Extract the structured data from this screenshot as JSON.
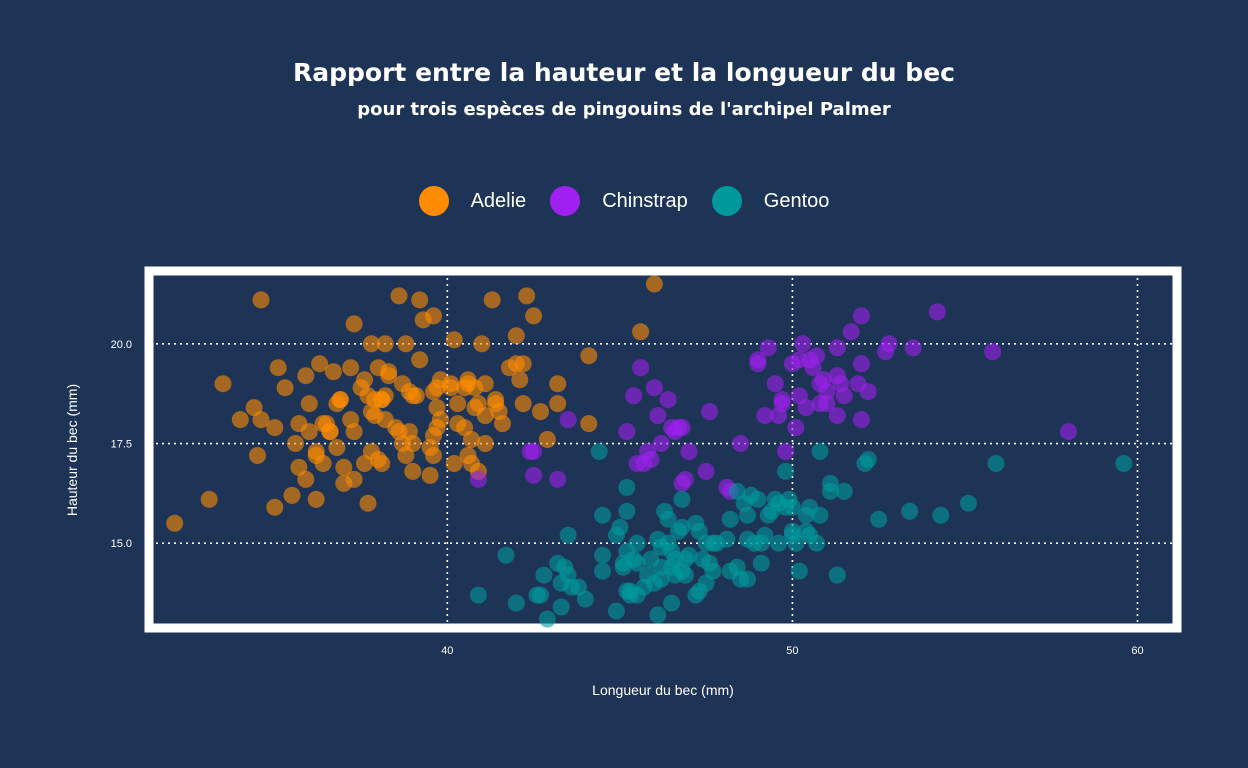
{
  "chart_data": {
    "type": "scatter",
    "title": "Rapport entre la hauteur et la longueur du bec",
    "subtitle": "pour trois espèces de pingouins de l'archipel Palmer",
    "xlabel": "Longueur du bec (mm)",
    "ylabel": "Hauteur du bec (mm)",
    "xlim": [
      31.5,
      61
    ],
    "ylim": [
      13,
      21.7
    ],
    "x_ticks": [
      40,
      50,
      60
    ],
    "y_ticks": [
      15.0,
      17.5,
      20.0
    ],
    "x_tick_labels": [
      "40",
      "50",
      "60"
    ],
    "y_tick_labels": [
      "15.0",
      "17.5",
      "20.0"
    ],
    "grid": true,
    "legend_position": "top",
    "series": [
      {
        "name": "Adelie",
        "color": "#ff8c00",
        "points": [
          [
            32.1,
            15.5
          ],
          [
            33.1,
            16.1
          ],
          [
            33.5,
            19.0
          ],
          [
            34.0,
            18.1
          ],
          [
            34.4,
            18.4
          ],
          [
            34.6,
            18.1
          ],
          [
            34.6,
            21.1
          ],
          [
            35.0,
            17.9
          ],
          [
            35.1,
            19.4
          ],
          [
            35.3,
            18.9
          ],
          [
            35.5,
            16.2
          ],
          [
            35.6,
            17.5
          ],
          [
            35.7,
            16.9
          ],
          [
            35.9,
            19.2
          ],
          [
            36.0,
            17.8
          ],
          [
            36.0,
            18.5
          ],
          [
            36.2,
            17.2
          ],
          [
            36.2,
            16.1
          ],
          [
            36.4,
            17.0
          ],
          [
            36.5,
            18.0
          ],
          [
            36.6,
            17.8
          ],
          [
            36.7,
            19.3
          ],
          [
            36.8,
            18.5
          ],
          [
            36.9,
            18.6
          ],
          [
            37.0,
            16.9
          ],
          [
            37.2,
            18.1
          ],
          [
            37.3,
            17.8
          ],
          [
            37.3,
            20.5
          ],
          [
            37.5,
            18.9
          ],
          [
            37.6,
            17.0
          ],
          [
            37.7,
            18.7
          ],
          [
            37.8,
            18.3
          ],
          [
            37.9,
            18.6
          ],
          [
            38.0,
            17.1
          ],
          [
            38.1,
            18.6
          ],
          [
            38.2,
            20.0
          ],
          [
            38.3,
            19.2
          ],
          [
            38.5,
            17.9
          ],
          [
            38.6,
            21.2
          ],
          [
            38.7,
            19.0
          ],
          [
            38.8,
            17.2
          ],
          [
            38.9,
            18.8
          ],
          [
            39.0,
            17.5
          ],
          [
            39.1,
            18.7
          ],
          [
            39.2,
            19.6
          ],
          [
            39.3,
            20.6
          ],
          [
            39.5,
            16.7
          ],
          [
            39.6,
            17.7
          ],
          [
            39.7,
            18.4
          ],
          [
            39.8,
            19.1
          ],
          [
            40.1,
            18.9
          ],
          [
            40.2,
            17.0
          ],
          [
            40.3,
            18.0
          ],
          [
            40.5,
            18.9
          ],
          [
            40.6,
            19.0
          ],
          [
            40.7,
            17.0
          ],
          [
            40.8,
            18.4
          ],
          [
            40.9,
            16.8
          ],
          [
            41.0,
            20.0
          ],
          [
            41.1,
            18.2
          ],
          [
            41.3,
            21.1
          ],
          [
            41.4,
            18.5
          ],
          [
            41.5,
            18.3
          ],
          [
            41.6,
            18.0
          ],
          [
            42.0,
            20.2
          ],
          [
            42.1,
            19.1
          ],
          [
            42.2,
            18.5
          ],
          [
            42.3,
            21.2
          ],
          [
            42.5,
            20.7
          ],
          [
            42.7,
            18.3
          ],
          [
            42.9,
            17.6
          ],
          [
            43.2,
            19.0
          ],
          [
            43.2,
            18.5
          ],
          [
            44.1,
            19.7
          ],
          [
            44.1,
            18.0
          ],
          [
            45.6,
            20.3
          ],
          [
            46.0,
            21.5
          ],
          [
            39.2,
            21.1
          ],
          [
            39.6,
            20.7
          ],
          [
            38.1,
            17.0
          ],
          [
            37.0,
            16.5
          ],
          [
            36.6,
            17.8
          ],
          [
            38.8,
            20.0
          ],
          [
            37.9,
            18.2
          ],
          [
            36.2,
            17.3
          ],
          [
            39.7,
            17.9
          ],
          [
            40.3,
            18.5
          ],
          [
            35.7,
            18.0
          ],
          [
            37.2,
            19.4
          ],
          [
            38.6,
            17.8
          ],
          [
            39.8,
            18.1
          ],
          [
            41.1,
            19.0
          ],
          [
            40.6,
            19.1
          ],
          [
            36.8,
            17.4
          ],
          [
            37.7,
            16.0
          ],
          [
            38.2,
            18.1
          ],
          [
            39.0,
            18.7
          ],
          [
            37.8,
            20.0
          ],
          [
            40.9,
            18.5
          ],
          [
            41.8,
            19.4
          ],
          [
            36.3,
            19.5
          ],
          [
            38.9,
            17.8
          ],
          [
            34.5,
            17.2
          ],
          [
            37.3,
            16.6
          ],
          [
            39.6,
            18.8
          ],
          [
            40.2,
            20.1
          ],
          [
            35.0,
            15.9
          ],
          [
            38.1,
            18.6
          ],
          [
            40.6,
            17.2
          ],
          [
            42.0,
            19.5
          ],
          [
            39.5,
            17.4
          ],
          [
            38.7,
            17.5
          ],
          [
            36.9,
            18.6
          ],
          [
            41.1,
            17.5
          ],
          [
            37.6,
            19.1
          ],
          [
            42.2,
            19.5
          ],
          [
            40.8,
            18.9
          ],
          [
            39.0,
            16.8
          ],
          [
            38.3,
            19.3
          ],
          [
            40.7,
            17.6
          ],
          [
            35.9,
            16.6
          ],
          [
            37.8,
            17.3
          ],
          [
            38.0,
            19.4
          ],
          [
            39.6,
            17.2
          ],
          [
            40.1,
            19.0
          ],
          [
            41.4,
            18.6
          ],
          [
            39.7,
            18.9
          ],
          [
            36.4,
            18.0
          ],
          [
            38.2,
            18.7
          ],
          [
            40.5,
            17.9
          ]
        ]
      },
      {
        "name": "Chinstrap",
        "color": "#a020f0",
        "points": [
          [
            40.9,
            16.6
          ],
          [
            42.4,
            17.3
          ],
          [
            42.5,
            16.7
          ],
          [
            42.5,
            17.3
          ],
          [
            43.2,
            16.6
          ],
          [
            43.5,
            18.1
          ],
          [
            45.2,
            17.8
          ],
          [
            45.4,
            18.7
          ],
          [
            45.5,
            17.0
          ],
          [
            45.6,
            19.4
          ],
          [
            45.7,
            17.0
          ],
          [
            45.9,
            17.1
          ],
          [
            46.0,
            18.9
          ],
          [
            46.1,
            18.2
          ],
          [
            46.2,
            17.5
          ],
          [
            46.4,
            18.6
          ],
          [
            46.5,
            17.9
          ],
          [
            46.6,
            17.8
          ],
          [
            46.7,
            17.9
          ],
          [
            46.8,
            16.5
          ],
          [
            47.0,
            17.3
          ],
          [
            47.5,
            16.8
          ],
          [
            47.6,
            18.3
          ],
          [
            48.1,
            16.4
          ],
          [
            48.5,
            17.5
          ],
          [
            49.0,
            19.5
          ],
          [
            49.2,
            18.2
          ],
          [
            49.3,
            19.9
          ],
          [
            49.5,
            19.0
          ],
          [
            49.6,
            18.2
          ],
          [
            49.7,
            18.6
          ],
          [
            49.8,
            17.3
          ],
          [
            50.1,
            17.9
          ],
          [
            50.2,
            18.7
          ],
          [
            50.3,
            20.0
          ],
          [
            50.5,
            19.6
          ],
          [
            50.6,
            19.4
          ],
          [
            50.7,
            19.7
          ],
          [
            50.8,
            18.5
          ],
          [
            50.9,
            19.1
          ],
          [
            51.0,
            18.8
          ],
          [
            51.3,
            18.2
          ],
          [
            51.3,
            19.2
          ],
          [
            51.4,
            19.0
          ],
          [
            51.5,
            18.7
          ],
          [
            51.7,
            20.3
          ],
          [
            52.0,
            18.1
          ],
          [
            52.0,
            19.5
          ],
          [
            52.0,
            20.7
          ],
          [
            52.2,
            18.8
          ],
          [
            52.7,
            19.8
          ],
          [
            52.8,
            20.0
          ],
          [
            53.5,
            19.9
          ],
          [
            54.2,
            20.8
          ],
          [
            55.8,
            19.8
          ],
          [
            58.0,
            17.8
          ],
          [
            49.0,
            19.6
          ],
          [
            50.0,
            19.5
          ],
          [
            51.3,
            19.9
          ],
          [
            50.4,
            18.4
          ],
          [
            50.8,
            19.0
          ],
          [
            51.9,
            19.0
          ],
          [
            45.8,
            17.3
          ],
          [
            46.9,
            16.6
          ],
          [
            48.2,
            16.3
          ],
          [
            50.2,
            19.6
          ],
          [
            46.8,
            17.9
          ],
          [
            49.7,
            18.5
          ],
          [
            51.0,
            18.5
          ]
        ]
      },
      {
        "name": "Gentoo",
        "color": "#00999b",
        "points": [
          [
            40.9,
            13.7
          ],
          [
            41.7,
            14.7
          ],
          [
            42.0,
            13.5
          ],
          [
            42.6,
            13.7
          ],
          [
            42.7,
            13.7
          ],
          [
            42.8,
            14.2
          ],
          [
            42.9,
            13.1
          ],
          [
            43.2,
            14.5
          ],
          [
            43.3,
            14.0
          ],
          [
            43.4,
            14.4
          ],
          [
            43.5,
            14.2
          ],
          [
            43.5,
            15.2
          ],
          [
            43.6,
            13.9
          ],
          [
            43.8,
            13.9
          ],
          [
            44.0,
            13.6
          ],
          [
            44.4,
            17.3
          ],
          [
            44.5,
            14.3
          ],
          [
            44.5,
            15.7
          ],
          [
            44.9,
            13.3
          ],
          [
            45.0,
            15.4
          ],
          [
            45.1,
            14.5
          ],
          [
            45.2,
            13.8
          ],
          [
            45.2,
            14.8
          ],
          [
            45.2,
            15.8
          ],
          [
            45.3,
            13.8
          ],
          [
            45.4,
            14.6
          ],
          [
            45.5,
            13.7
          ],
          [
            45.5,
            14.5
          ],
          [
            45.5,
            15.0
          ],
          [
            45.7,
            13.9
          ],
          [
            45.8,
            14.2
          ],
          [
            46.1,
            15.1
          ],
          [
            46.2,
            14.1
          ],
          [
            46.2,
            14.4
          ],
          [
            46.3,
            15.8
          ],
          [
            46.4,
            15.0
          ],
          [
            46.4,
            15.6
          ],
          [
            46.5,
            13.5
          ],
          [
            46.5,
            14.4
          ],
          [
            46.6,
            14.2
          ],
          [
            46.8,
            14.3
          ],
          [
            46.8,
            15.4
          ],
          [
            46.8,
            16.1
          ],
          [
            46.9,
            14.6
          ],
          [
            47.2,
            13.7
          ],
          [
            47.2,
            15.5
          ],
          [
            47.3,
            15.3
          ],
          [
            47.4,
            14.6
          ],
          [
            47.5,
            14.0
          ],
          [
            47.5,
            15.0
          ],
          [
            47.6,
            14.5
          ],
          [
            47.7,
            15.0
          ],
          [
            47.8,
            15.0
          ],
          [
            48.1,
            15.1
          ],
          [
            48.2,
            14.3
          ],
          [
            48.2,
            15.6
          ],
          [
            48.4,
            14.4
          ],
          [
            48.4,
            16.3
          ],
          [
            48.5,
            14.1
          ],
          [
            48.6,
            16.0
          ],
          [
            48.7,
            14.1
          ],
          [
            48.7,
            15.1
          ],
          [
            48.8,
            16.2
          ],
          [
            49.0,
            16.1
          ],
          [
            49.1,
            14.5
          ],
          [
            49.1,
            15.0
          ],
          [
            49.2,
            15.2
          ],
          [
            49.3,
            15.7
          ],
          [
            49.4,
            15.8
          ],
          [
            49.5,
            16.1
          ],
          [
            49.6,
            15.0
          ],
          [
            49.6,
            16.0
          ],
          [
            49.8,
            15.9
          ],
          [
            49.8,
            16.8
          ],
          [
            50.0,
            15.2
          ],
          [
            50.0,
            15.3
          ],
          [
            50.0,
            15.9
          ],
          [
            50.1,
            15.0
          ],
          [
            50.2,
            14.3
          ],
          [
            50.4,
            15.3
          ],
          [
            50.4,
            15.7
          ],
          [
            50.5,
            15.2
          ],
          [
            50.5,
            15.9
          ],
          [
            50.7,
            15.0
          ],
          [
            50.8,
            15.7
          ],
          [
            50.8,
            17.3
          ],
          [
            51.1,
            16.3
          ],
          [
            51.1,
            16.5
          ],
          [
            51.3,
            14.2
          ],
          [
            51.5,
            16.3
          ],
          [
            52.1,
            17.0
          ],
          [
            52.2,
            17.1
          ],
          [
            52.5,
            15.6
          ],
          [
            53.4,
            15.8
          ],
          [
            54.3,
            15.7
          ],
          [
            55.1,
            16.0
          ],
          [
            55.9,
            17.0
          ],
          [
            59.6,
            17.0
          ],
          [
            43.3,
            13.4
          ],
          [
            46.2,
            14.9
          ],
          [
            45.1,
            14.4
          ],
          [
            46.5,
            14.8
          ],
          [
            44.9,
            15.2
          ],
          [
            47.0,
            14.7
          ],
          [
            45.3,
            13.7
          ],
          [
            46.7,
            15.3
          ],
          [
            45.9,
            14.6
          ],
          [
            48.7,
            15.7
          ],
          [
            49.9,
            16.1
          ],
          [
            47.3,
            13.8
          ],
          [
            46.6,
            14.6
          ],
          [
            45.2,
            16.4
          ],
          [
            47.7,
            14.3
          ],
          [
            48.9,
            15.0
          ],
          [
            44.5,
            14.7
          ],
          [
            46.1,
            13.2
          ],
          [
            46.0,
            14.0
          ],
          [
            46.9,
            14.2
          ]
        ]
      }
    ]
  }
}
